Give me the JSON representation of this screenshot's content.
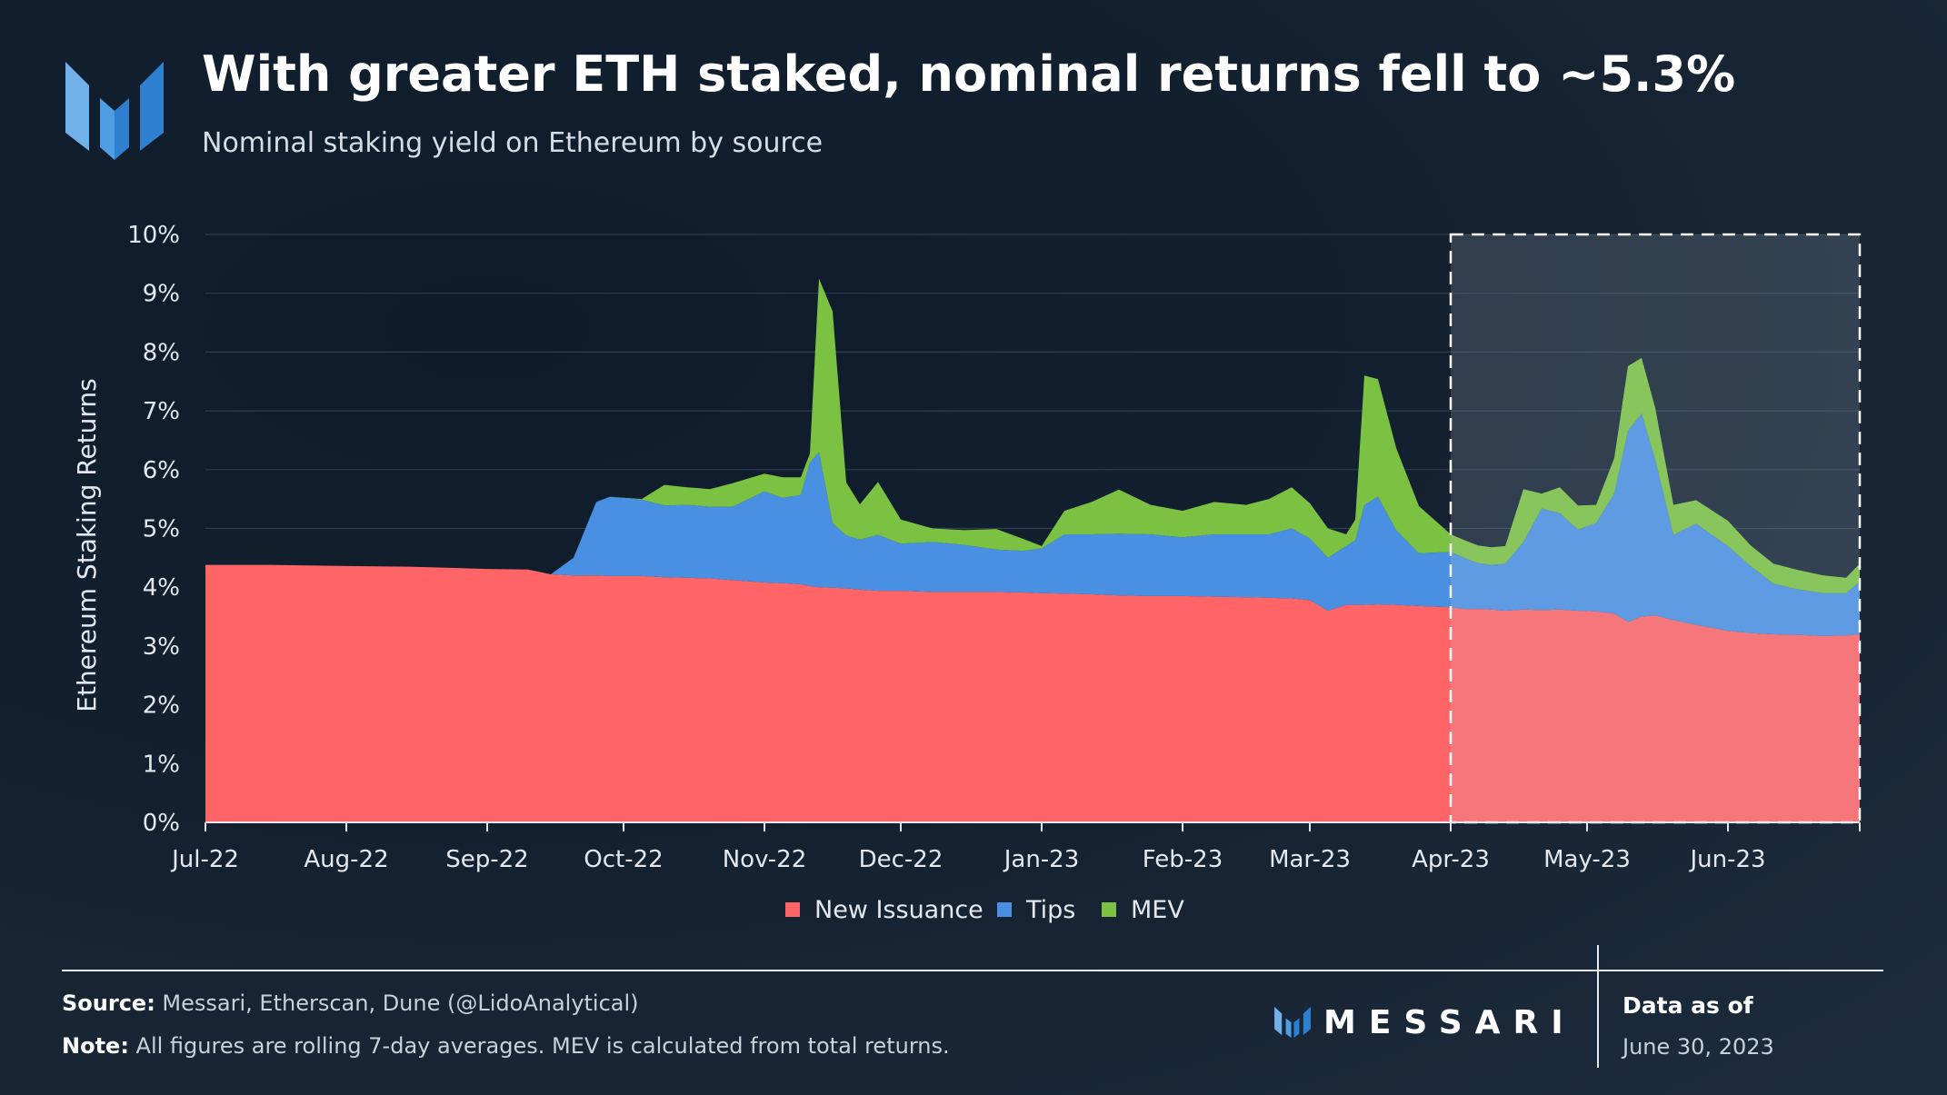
{
  "header": {
    "title": "With greater ETH staked, nominal returns fell to ~5.3%",
    "subtitle": "Nominal staking yield on Ethereum by source"
  },
  "colors": {
    "new_issuance": "#ff6566",
    "tips": "#4a90e2",
    "mev": "#7cc242",
    "grid": "#2f3d4d",
    "axis_text": "#e4e8ee",
    "highlight_fill": "#3b4654",
    "logo_light": "#6fb1e8",
    "logo_dark": "#2f7fd0"
  },
  "footer": {
    "source_label": "Source:",
    "source_text": " Messari, Etherscan, Dune (@LidoAnalytical)",
    "note_label": "Note:",
    "note_text": " All figures are rolling 7-day averages. MEV is calculated from total returns.",
    "brand": "MESSARI",
    "data_as_of_label": "Data as of",
    "data_date": "June 30, 2023"
  },
  "chart_data": {
    "type": "area",
    "stacked": true,
    "title": "With greater ETH staked, nominal returns fell to ~5.3%",
    "subtitle": "Nominal staking yield on Ethereum by source",
    "ylabel": "Ethereum Staking Returns",
    "xlabel": "",
    "ylim": [
      0,
      10
    ],
    "y_ticks": [
      "0%",
      "1%",
      "2%",
      "3%",
      "4%",
      "5%",
      "6%",
      "7%",
      "8%",
      "9%",
      "10%"
    ],
    "x_ticks": [
      "Jul-22",
      "Aug-22",
      "Sep-22",
      "Oct-22",
      "Nov-22",
      "Dec-22",
      "Jan-23",
      "Feb-23",
      "Mar-23",
      "Apr-23",
      "May-23",
      "Jun-23"
    ],
    "grid": "horizontal",
    "legend": "bottom-center",
    "highlight": {
      "from": "Apr-23",
      "to": "Jun-30-23"
    },
    "x": [
      "2022-07-01",
      "2022-07-15",
      "2022-08-01",
      "2022-08-15",
      "2022-09-01",
      "2022-09-10",
      "2022-09-15",
      "2022-09-20",
      "2022-09-25",
      "2022-09-28",
      "2022-10-05",
      "2022-10-10",
      "2022-10-15",
      "2022-10-20",
      "2022-10-25",
      "2022-11-01",
      "2022-11-05",
      "2022-11-09",
      "2022-11-11",
      "2022-11-13",
      "2022-11-16",
      "2022-11-19",
      "2022-11-22",
      "2022-11-26",
      "2022-12-01",
      "2022-12-08",
      "2022-12-15",
      "2022-12-22",
      "2022-12-28",
      "2023-01-01",
      "2023-01-06",
      "2023-01-12",
      "2023-01-18",
      "2023-01-25",
      "2023-02-01",
      "2023-02-08",
      "2023-02-15",
      "2023-02-20",
      "2023-02-25",
      "2023-03-01",
      "2023-03-05",
      "2023-03-09",
      "2023-03-11",
      "2023-03-13",
      "2023-03-16",
      "2023-03-20",
      "2023-03-25",
      "2023-04-01",
      "2023-04-04",
      "2023-04-07",
      "2023-04-10",
      "2023-04-13",
      "2023-04-17",
      "2023-04-21",
      "2023-04-25",
      "2023-04-29",
      "2023-05-03",
      "2023-05-07",
      "2023-05-10",
      "2023-05-13",
      "2023-05-16",
      "2023-05-20",
      "2023-05-25",
      "2023-06-01",
      "2023-06-06",
      "2023-06-11",
      "2023-06-16",
      "2023-06-22",
      "2023-06-27",
      "2023-06-30"
    ],
    "series": [
      {
        "name": "New Issuance",
        "values": [
          4.38,
          4.38,
          4.36,
          4.35,
          4.31,
          4.3,
          4.22,
          4.2,
          4.2,
          4.19,
          4.19,
          4.17,
          4.16,
          4.15,
          4.12,
          4.08,
          4.07,
          4.05,
          4.02,
          4.0,
          3.99,
          3.98,
          3.96,
          3.94,
          3.94,
          3.92,
          3.92,
          3.92,
          3.91,
          3.9,
          3.89,
          3.88,
          3.86,
          3.85,
          3.85,
          3.84,
          3.83,
          3.82,
          3.81,
          3.78,
          3.6,
          3.7,
          3.7,
          3.7,
          3.71,
          3.7,
          3.68,
          3.66,
          3.63,
          3.63,
          3.62,
          3.6,
          3.62,
          3.61,
          3.62,
          3.6,
          3.59,
          3.55,
          3.41,
          3.5,
          3.52,
          3.44,
          3.36,
          3.26,
          3.22,
          3.2,
          3.19,
          3.17,
          3.18,
          3.2
        ]
      },
      {
        "name": "Tips",
        "values": [
          0,
          0,
          0,
          0,
          0,
          0,
          0,
          0.3,
          1.25,
          1.35,
          1.3,
          1.22,
          1.24,
          1.22,
          1.25,
          1.55,
          1.45,
          1.52,
          2.1,
          2.3,
          1.1,
          0.9,
          0.85,
          0.95,
          0.8,
          0.85,
          0.8,
          0.72,
          0.71,
          0.76,
          1.01,
          1.02,
          1.05,
          1.05,
          1.0,
          1.06,
          1.07,
          1.08,
          1.19,
          1.05,
          0.9,
          1.0,
          1.1,
          1.7,
          1.83,
          1.27,
          0.9,
          0.94,
          0.87,
          0.78,
          0.76,
          0.8,
          1.15,
          1.73,
          1.64,
          1.38,
          1.5,
          2.05,
          3.25,
          3.45,
          2.65,
          1.45,
          1.72,
          1.44,
          1.14,
          0.86,
          0.78,
          0.73,
          0.72,
          0.9
        ]
      },
      {
        "name": "MEV",
        "values": [
          0,
          0,
          0,
          0,
          0,
          0,
          0,
          0,
          0,
          0,
          0.01,
          0.35,
          0.3,
          0.3,
          0.4,
          0.3,
          0.35,
          0.3,
          0.15,
          2.95,
          3.6,
          0.9,
          0.6,
          0.9,
          0.41,
          0.23,
          0.25,
          0.35,
          0.2,
          0.04,
          0.4,
          0.55,
          0.75,
          0.5,
          0.45,
          0.55,
          0.5,
          0.6,
          0.7,
          0.6,
          0.5,
          0.2,
          0.35,
          2.2,
          2.0,
          1.4,
          0.8,
          0.3,
          0.3,
          0.3,
          0.3,
          0.3,
          0.9,
          0.25,
          0.44,
          0.41,
          0.31,
          0.6,
          1.1,
          0.95,
          0.88,
          0.51,
          0.4,
          0.43,
          0.35,
          0.34,
          0.33,
          0.3,
          0.26,
          0.3
        ]
      }
    ]
  }
}
